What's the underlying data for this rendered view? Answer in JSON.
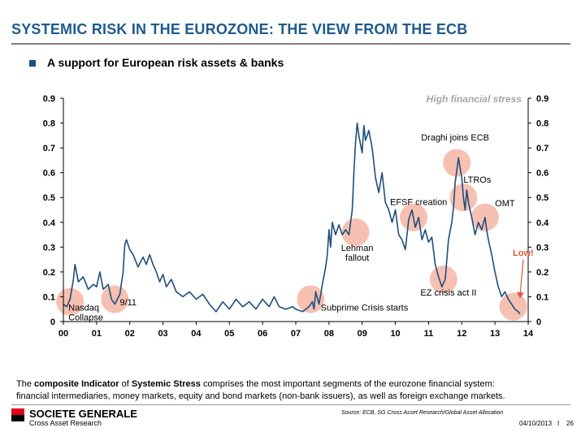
{
  "header": {
    "title": "SYSTEMIC RISK IN THE EUROZONE: THE VIEW FROM THE ECB",
    "subtitle": "A support for European risk assets & banks"
  },
  "chart_data": {
    "type": "line",
    "title": "",
    "xlabel": "",
    "ylabel": "",
    "x_ticks": [
      "00",
      "01",
      "02",
      "03",
      "04",
      "05",
      "06",
      "07",
      "08",
      "09",
      "10",
      "11",
      "12",
      "13",
      "14"
    ],
    "x_range": [
      2000.0,
      2014.0
    ],
    "y_ticks": [
      "0",
      "0.1",
      "0.2",
      "0.3",
      "0.4",
      "0.5",
      "0.6",
      "0.7",
      "0.8",
      "0.9"
    ],
    "ylim": [
      0,
      0.9
    ],
    "series_color": "#1f4e79",
    "highlight_color": "#f4b6a6",
    "low_color": "#e0593a",
    "stress_label": "High financial stress",
    "series": [
      {
        "name": "Composite Indicator of Systemic Stress",
        "points": [
          [
            2000.0,
            0.07
          ],
          [
            2000.1,
            0.06
          ],
          [
            2000.2,
            0.09
          ],
          [
            2000.3,
            0.17
          ],
          [
            2000.35,
            0.23
          ],
          [
            2000.45,
            0.16
          ],
          [
            2000.6,
            0.18
          ],
          [
            2000.75,
            0.13
          ],
          [
            2000.9,
            0.15
          ],
          [
            2001.0,
            0.14
          ],
          [
            2001.1,
            0.2
          ],
          [
            2001.2,
            0.13
          ],
          [
            2001.35,
            0.15
          ],
          [
            2001.45,
            0.09
          ],
          [
            2001.55,
            0.07
          ],
          [
            2001.7,
            0.11
          ],
          [
            2001.8,
            0.2
          ],
          [
            2001.85,
            0.31
          ],
          [
            2001.9,
            0.33
          ],
          [
            2002.0,
            0.29
          ],
          [
            2002.1,
            0.27
          ],
          [
            2002.25,
            0.22
          ],
          [
            2002.4,
            0.26
          ],
          [
            2002.5,
            0.23
          ],
          [
            2002.6,
            0.27
          ],
          [
            2002.7,
            0.23
          ],
          [
            2002.8,
            0.2
          ],
          [
            2002.9,
            0.16
          ],
          [
            2003.0,
            0.19
          ],
          [
            2003.1,
            0.14
          ],
          [
            2003.25,
            0.17
          ],
          [
            2003.4,
            0.12
          ],
          [
            2003.6,
            0.1
          ],
          [
            2003.8,
            0.12
          ],
          [
            2004.0,
            0.09
          ],
          [
            2004.2,
            0.11
          ],
          [
            2004.4,
            0.07
          ],
          [
            2004.6,
            0.04
          ],
          [
            2004.8,
            0.08
          ],
          [
            2005.0,
            0.05
          ],
          [
            2005.2,
            0.09
          ],
          [
            2005.4,
            0.06
          ],
          [
            2005.6,
            0.08
          ],
          [
            2005.8,
            0.05
          ],
          [
            2006.0,
            0.09
          ],
          [
            2006.2,
            0.06
          ],
          [
            2006.35,
            0.1
          ],
          [
            2006.5,
            0.06
          ],
          [
            2006.7,
            0.05
          ],
          [
            2006.9,
            0.06
          ],
          [
            2007.0,
            0.05
          ],
          [
            2007.2,
            0.04
          ],
          [
            2007.4,
            0.06
          ],
          [
            2007.5,
            0.08
          ],
          [
            2007.55,
            0.05
          ],
          [
            2007.6,
            0.12
          ],
          [
            2007.7,
            0.07
          ],
          [
            2007.8,
            0.15
          ],
          [
            2007.9,
            0.22
          ],
          [
            2007.95,
            0.27
          ],
          [
            2008.0,
            0.37
          ],
          [
            2008.05,
            0.3
          ],
          [
            2008.1,
            0.4
          ],
          [
            2008.2,
            0.35
          ],
          [
            2008.3,
            0.39
          ],
          [
            2008.4,
            0.35
          ],
          [
            2008.5,
            0.37
          ],
          [
            2008.6,
            0.35
          ],
          [
            2008.7,
            0.45
          ],
          [
            2008.75,
            0.6
          ],
          [
            2008.8,
            0.72
          ],
          [
            2008.85,
            0.8
          ],
          [
            2008.9,
            0.75
          ],
          [
            2009.0,
            0.68
          ],
          [
            2009.05,
            0.79
          ],
          [
            2009.1,
            0.73
          ],
          [
            2009.2,
            0.77
          ],
          [
            2009.3,
            0.7
          ],
          [
            2009.4,
            0.58
          ],
          [
            2009.5,
            0.52
          ],
          [
            2009.6,
            0.6
          ],
          [
            2009.7,
            0.48
          ],
          [
            2009.8,
            0.45
          ],
          [
            2009.9,
            0.4
          ],
          [
            2010.0,
            0.45
          ],
          [
            2010.1,
            0.35
          ],
          [
            2010.2,
            0.33
          ],
          [
            2010.3,
            0.29
          ],
          [
            2010.35,
            0.35
          ],
          [
            2010.4,
            0.41
          ],
          [
            2010.5,
            0.45
          ],
          [
            2010.6,
            0.38
          ],
          [
            2010.7,
            0.42
          ],
          [
            2010.8,
            0.33
          ],
          [
            2010.9,
            0.37
          ],
          [
            2011.0,
            0.32
          ],
          [
            2011.1,
            0.34
          ],
          [
            2011.2,
            0.23
          ],
          [
            2011.3,
            0.18
          ],
          [
            2011.4,
            0.14
          ],
          [
            2011.5,
            0.17
          ],
          [
            2011.55,
            0.25
          ],
          [
            2011.6,
            0.33
          ],
          [
            2011.7,
            0.4
          ],
          [
            2011.75,
            0.46
          ],
          [
            2011.8,
            0.56
          ],
          [
            2011.85,
            0.61
          ],
          [
            2011.9,
            0.66
          ],
          [
            2011.95,
            0.62
          ],
          [
            2012.0,
            0.58
          ],
          [
            2012.05,
            0.5
          ],
          [
            2012.1,
            0.45
          ],
          [
            2012.15,
            0.53
          ],
          [
            2012.2,
            0.48
          ],
          [
            2012.3,
            0.42
          ],
          [
            2012.4,
            0.35
          ],
          [
            2012.5,
            0.4
          ],
          [
            2012.6,
            0.37
          ],
          [
            2012.7,
            0.42
          ],
          [
            2012.75,
            0.37
          ],
          [
            2012.8,
            0.33
          ],
          [
            2012.9,
            0.27
          ],
          [
            2013.0,
            0.2
          ],
          [
            2013.1,
            0.14
          ],
          [
            2013.2,
            0.1
          ],
          [
            2013.3,
            0.12
          ],
          [
            2013.4,
            0.09
          ],
          [
            2013.5,
            0.07
          ],
          [
            2013.6,
            0.05
          ],
          [
            2013.7,
            0.04
          ],
          [
            2013.75,
            0.03
          ]
        ]
      }
    ],
    "highlights": [
      {
        "name": "nasdaq",
        "x": 2000.2,
        "y": 0.08
      },
      {
        "name": "9-11",
        "x": 2001.55,
        "y": 0.09
      },
      {
        "name": "subprime",
        "x": 2007.45,
        "y": 0.09
      },
      {
        "name": "lehman",
        "x": 2008.8,
        "y": 0.36
      },
      {
        "name": "efsf",
        "x": 2010.55,
        "y": 0.42
      },
      {
        "name": "ez-crisis",
        "x": 2011.45,
        "y": 0.17
      },
      {
        "name": "draghi",
        "x": 2011.85,
        "y": 0.64
      },
      {
        "name": "ltros",
        "x": 2012.05,
        "y": 0.5
      },
      {
        "name": "omt",
        "x": 2012.7,
        "y": 0.42
      },
      {
        "name": "low",
        "x": 2013.55,
        "y": 0.06
      }
    ],
    "annotations": [
      {
        "name": "nasdaq",
        "lines": [
          "Nasdaq",
          "Collapse"
        ]
      },
      {
        "name": "9-11",
        "lines": [
          "9/11"
        ]
      },
      {
        "name": "subprime",
        "lines": [
          "Subprime Crisis starts"
        ]
      },
      {
        "name": "lehman",
        "lines": [
          "Lehman",
          "fallout"
        ]
      },
      {
        "name": "efsf",
        "lines": [
          "EFSF creation"
        ]
      },
      {
        "name": "ez-crisis",
        "lines": [
          "EZ crisis act II"
        ]
      },
      {
        "name": "draghi",
        "lines": [
          "Draghi  joins ECB"
        ]
      },
      {
        "name": "ltros",
        "lines": [
          "LTROs"
        ]
      },
      {
        "name": "omt",
        "lines": [
          "OMT"
        ]
      },
      {
        "name": "low",
        "lines": [
          "Low!"
        ]
      }
    ]
  },
  "footnote": {
    "bold1": "composite Indicator",
    "bold2": "Systemic Stress",
    "line1_start": "The",
    "line1_mid": "of",
    "line1_end": "comprises the most important segments of the eurozone financial system:",
    "line2": "financial intermediaries, money markets, equity and bond markets (non-bank issuers), as well as foreign exchange markets."
  },
  "footer": {
    "brand": "SOCIETE GENERALE",
    "division": "Cross Asset Research",
    "source": "Source: ECB, SG Cross Asset Research/Global Asset Allocation",
    "date": "04/10/2013",
    "separator": "I",
    "page": "26"
  }
}
